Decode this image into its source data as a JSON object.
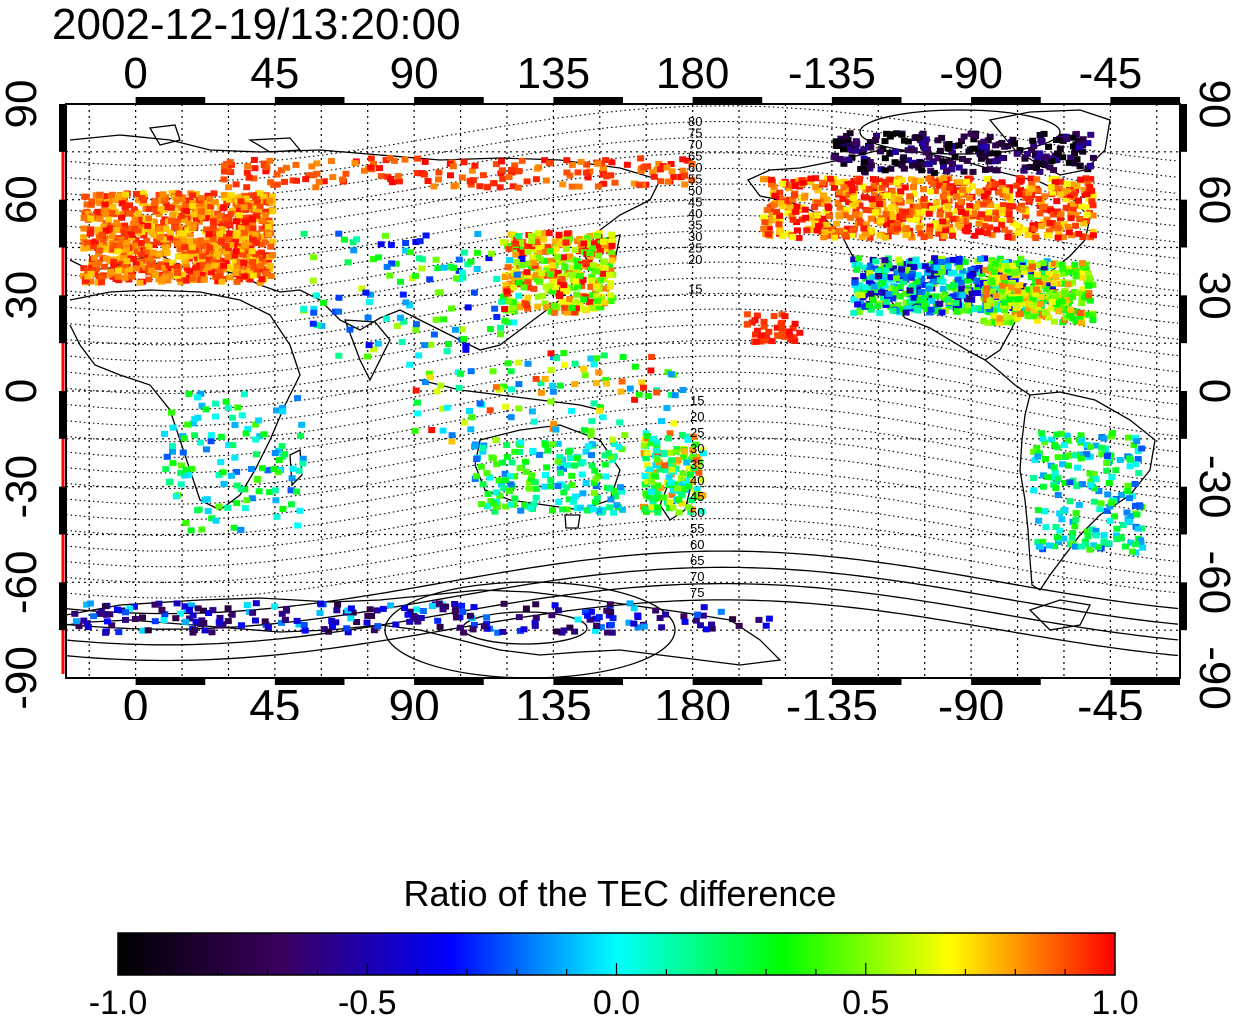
{
  "title": "2002-12-19/13:20:00",
  "map": {
    "top_lon_labels": [
      "0",
      "45",
      "90",
      "135",
      "180",
      "-135",
      "-90",
      "-45"
    ],
    "bottom_lon_labels": [
      "0",
      "45",
      "90",
      "135",
      "180",
      "-135",
      "-90",
      "-45"
    ],
    "left_lat_labels": [
      "90",
      "60",
      "30",
      "0",
      "-30",
      "-60",
      "-90"
    ],
    "right_lat_labels": [
      "90",
      "60",
      "30",
      "0",
      "-30",
      "-60",
      "-90"
    ],
    "north_contour_labels": [
      "80",
      "75",
      "70",
      "65",
      "60",
      "55",
      "50",
      "45",
      "40",
      "35",
      "30",
      "25",
      "20",
      "15"
    ],
    "south_contour_labels": [
      "15",
      "20",
      "25",
      "30",
      "35",
      "40",
      "45",
      "50",
      "55",
      "60",
      "65",
      "70",
      "75"
    ],
    "colors": {
      "high_ratio": "#ff0000",
      "mid_ratio": "#00ff00",
      "zero_ratio": "#00ffff",
      "low_ratio": "#0000ff",
      "min_ratio": "#000000",
      "terminator_line": "#ff0000"
    }
  },
  "colorbar": {
    "title": "Ratio of the TEC difference",
    "min": -1.0,
    "max": 1.0,
    "tick_labels": [
      "-1.0",
      "-0.5",
      "0.0",
      "0.5",
      "1.0"
    ],
    "colormap": [
      "#000000",
      "#3a0060",
      "#0000ff",
      "#00ffff",
      "#00ff00",
      "#ffff00",
      "#ff0000"
    ]
  }
}
